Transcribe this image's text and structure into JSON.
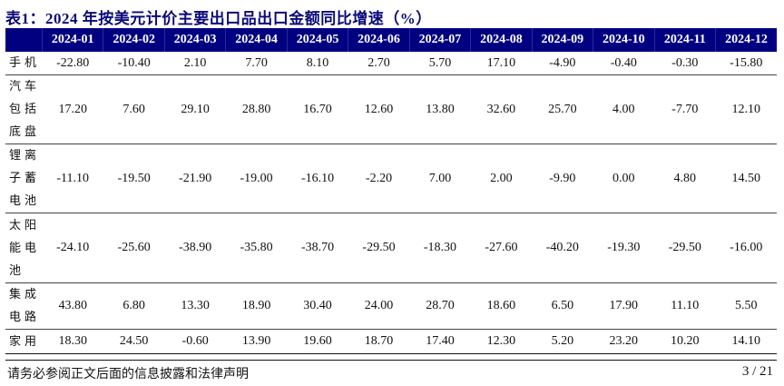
{
  "title": "表1：2024 年按美元计价主要出口品出口金额同比增速（%）",
  "colors": {
    "header_bg": "#000080",
    "title": "#0a0a7a"
  },
  "table": {
    "headers": [
      "",
      "2024-01",
      "2024-02",
      "2024-03",
      "2024-04",
      "2024-05",
      "2024-06",
      "2024-07",
      "2024-08",
      "2024-09",
      "2024-10",
      "2024-11",
      "2024-12"
    ],
    "rows": [
      {
        "label": "手机",
        "values": [
          "-22.80",
          "-10.40",
          "2.10",
          "7.70",
          "8.10",
          "2.70",
          "5.70",
          "17.10",
          "-4.90",
          "-0.40",
          "-0.30",
          "-15.80"
        ]
      },
      {
        "label": "汽车包括底盘",
        "values": [
          "17.20",
          "7.60",
          "29.10",
          "28.80",
          "16.70",
          "12.60",
          "13.80",
          "32.60",
          "25.70",
          "4.00",
          "-7.70",
          "12.10"
        ]
      },
      {
        "label": "锂离子蓄电池",
        "values": [
          "-11.10",
          "-19.50",
          "-21.90",
          "-19.00",
          "-16.10",
          "-2.20",
          "7.00",
          "2.00",
          "-9.90",
          "0.00",
          "4.80",
          "14.50"
        ]
      },
      {
        "label": "太阳能电池",
        "values": [
          "-24.10",
          "-25.60",
          "-38.90",
          "-35.80",
          "-38.70",
          "-29.50",
          "-18.30",
          "-27.60",
          "-40.20",
          "-19.30",
          "-29.50",
          "-16.00"
        ]
      },
      {
        "label": "集成电路",
        "values": [
          "43.80",
          "6.80",
          "13.30",
          "18.90",
          "30.40",
          "24.00",
          "28.70",
          "18.60",
          "6.50",
          "17.90",
          "11.10",
          "5.50"
        ]
      },
      {
        "label": "家用",
        "values": [
          "18.30",
          "24.50",
          "-0.60",
          "13.90",
          "19.60",
          "18.70",
          "17.40",
          "12.30",
          "5.20",
          "23.20",
          "10.20",
          "14.10"
        ]
      }
    ]
  },
  "footer": {
    "disclaimer": "请务必参阅正文后面的信息披露和法律声明",
    "page": "3 / 21"
  }
}
